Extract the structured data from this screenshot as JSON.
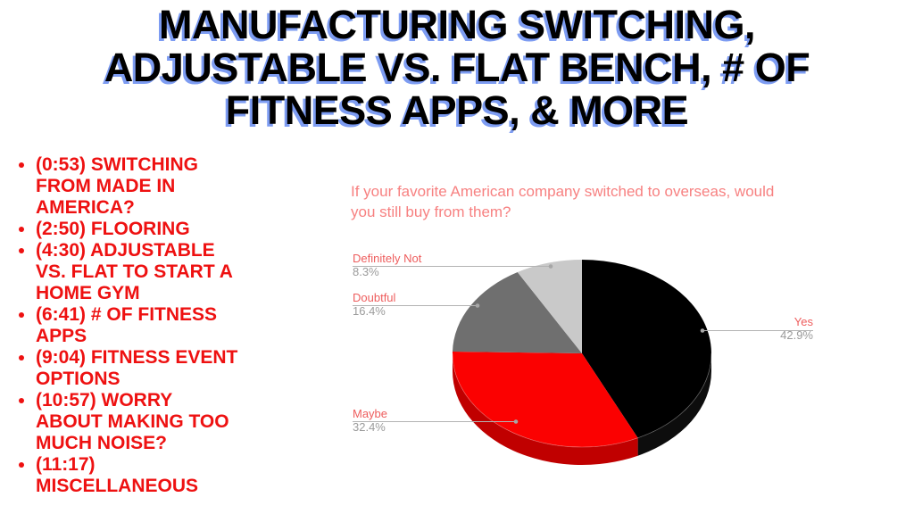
{
  "slide": {
    "title": "MANUFACTURING SWITCHING,\nADJUSTABLE VS. FLAT BENCH, # OF\nFITNESS APPS, & MORE"
  },
  "toc": {
    "items": [
      {
        "label": "(0:53) SWITCHING\nFROM MADE IN\nAMERICA?"
      },
      {
        "label": "(2:50) FLOORING"
      },
      {
        "label": "(4:30) ADJUSTABLE\nVS. FLAT TO START A\nHOME GYM"
      },
      {
        "label": "(6:41) # OF FITNESS\nAPPS"
      },
      {
        "label": "(9:04) FITNESS EVENT\nOPTIONS"
      },
      {
        "label": "(10:57) WORRY\nABOUT MAKING TOO\nMUCH NOISE?"
      },
      {
        "label": "(11:17)\nMISCELLANEOUS"
      }
    ]
  },
  "chart_data": {
    "type": "pie",
    "effect": "3d",
    "title": "If your favorite American company switched to overseas, would\nyou still buy from them?",
    "start_angle_deg": 0,
    "direction": "clockwise",
    "slices": [
      {
        "label": "Yes",
        "value": 42.9,
        "pct_label": "42.9%",
        "color": "#000000",
        "side_color": "#0d0d0d"
      },
      {
        "label": "Maybe",
        "value": 32.4,
        "pct_label": "32.4%",
        "color": "#fb0101",
        "side_color": "#c00000"
      },
      {
        "label": "Doubtful",
        "value": 16.4,
        "pct_label": "16.4%",
        "color": "#6f6f6f",
        "side_color": "#4f4f4f"
      },
      {
        "label": "Definitely Not",
        "value": 8.3,
        "pct_label": "8.3%",
        "color": "#c9c9c9",
        "side_color": "#9d9d9d"
      }
    ],
    "colors": {
      "title": "#f78181",
      "label": "#ee5d5d",
      "pct": "#9b9b9b",
      "leader_line": "#b3b3b3",
      "leader_dot": "#a6a6a6"
    }
  },
  "theme": {
    "background": "#ffffff",
    "title_color": "#000000",
    "title_shadow": "#7d9cf2",
    "toc_color": "#ee1111"
  }
}
